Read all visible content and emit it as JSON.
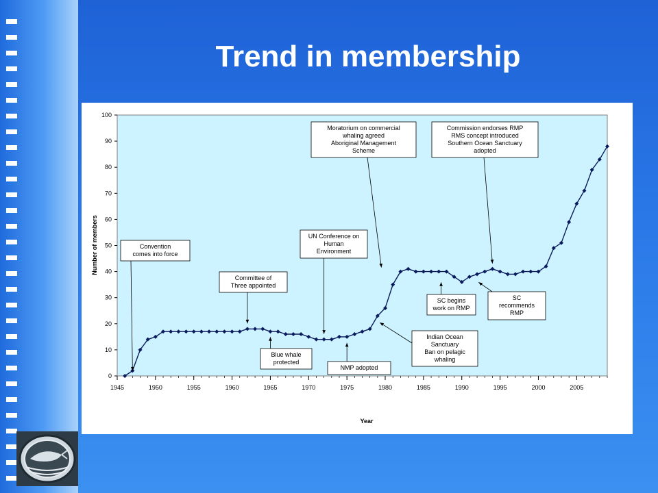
{
  "slide": {
    "title": "Trend in membership"
  },
  "colors": {
    "background": "#2a78e8",
    "plot_area": "#ccf3ff",
    "series": "#0a1a5c",
    "logo_frame": "#cfd8de"
  },
  "logo": {
    "icon": "whale-emblem-icon"
  },
  "chart_data": {
    "type": "line",
    "title": "",
    "xlabel": "Year",
    "ylabel": "Number of members",
    "xlim": [
      1945,
      2009
    ],
    "ylim": [
      0,
      100
    ],
    "x_ticks": [
      "1945",
      "1950",
      "1955",
      "1960",
      "1965",
      "1970",
      "1975",
      "1980",
      "1985",
      "1990",
      "1995",
      "2000",
      "2005"
    ],
    "y_ticks": [
      "0",
      "10",
      "20",
      "30",
      "40",
      "50",
      "60",
      "70",
      "80",
      "90",
      "100"
    ],
    "grid": false,
    "legend": "none",
    "series": [
      {
        "x": [
          1946,
          1947,
          1948,
          1949,
          1950,
          1951,
          1952,
          1953,
          1954,
          1955,
          1956,
          1957,
          1958,
          1959,
          1960,
          1961,
          1962,
          1963,
          1964,
          1965,
          1966,
          1967,
          1968,
          1969,
          1970,
          1971,
          1972,
          1973,
          1974,
          1975,
          1976,
          1977,
          1978,
          1979,
          1980,
          1981,
          1982,
          1983,
          1984,
          1985,
          1986,
          1987,
          1988,
          1989,
          1990,
          1991,
          1992,
          1993,
          1994,
          1995,
          1996,
          1997,
          1998,
          1999,
          2000,
          2001,
          2002,
          2003,
          2004,
          2005,
          2006,
          2007,
          2008,
          2009
        ],
        "y": [
          0,
          2,
          10,
          14,
          15,
          17,
          17,
          17,
          17,
          17,
          17,
          17,
          17,
          17,
          17,
          17,
          18,
          18,
          18,
          17,
          17,
          16,
          16,
          16,
          15,
          14,
          14,
          14,
          15,
          15,
          16,
          17,
          18,
          23,
          26,
          35,
          40,
          41,
          40,
          40,
          40,
          40,
          40,
          38,
          36,
          38,
          39,
          40,
          41,
          40,
          39,
          39,
          40,
          40,
          40,
          42,
          49,
          51,
          59,
          66,
          71,
          79,
          83,
          88
        ]
      }
    ],
    "annotations": [
      {
        "text": "Convention comes into force",
        "lines": [
          "Convention",
          "comes into force"
        ],
        "year": 1947
      },
      {
        "text": "Committee of Three appointed",
        "lines": [
          "Committee of",
          "Three appointed"
        ],
        "year": 1962
      },
      {
        "text": "Blue whale protected",
        "lines": [
          "Blue whale",
          "protected"
        ],
        "year": 1965
      },
      {
        "text": "UN Conference on Human Environment",
        "lines": [
          "UN Conference on",
          "Human",
          "Environment"
        ],
        "year": 1972
      },
      {
        "text": "NMP adopted",
        "lines": [
          "NMP adopted"
        ],
        "year": 1975
      },
      {
        "text": "Moratorium on commercial whaling agreed Aboriginal Management Scheme",
        "lines": [
          "Moratorium on commercial",
          "whaling agreed",
          "Aboriginal Management",
          "Scheme"
        ],
        "year": 1982
      },
      {
        "text": "Indian Ocean Sanctuary Ban on pelagic whaling",
        "lines": [
          "Indian Ocean",
          "Sanctuary",
          "Ban on pelagic",
          "whaling"
        ],
        "year": 1979
      },
      {
        "text": "SC begins work on RMP",
        "lines": [
          "SC begins",
          "work on RMP"
        ],
        "year": 1987
      },
      {
        "text": "Commission endorses RMP RMS concept introduced Southern Ocean Sanctuary adopted",
        "lines": [
          "Commission endorses RMP",
          "RMS concept introduced",
          "Southern Ocean Sanctuary",
          "adopted"
        ],
        "year": 1994
      },
      {
        "text": "SC recommends RMP",
        "lines": [
          "SC",
          "recommends",
          "RMP"
        ],
        "year": 1991
      }
    ]
  }
}
